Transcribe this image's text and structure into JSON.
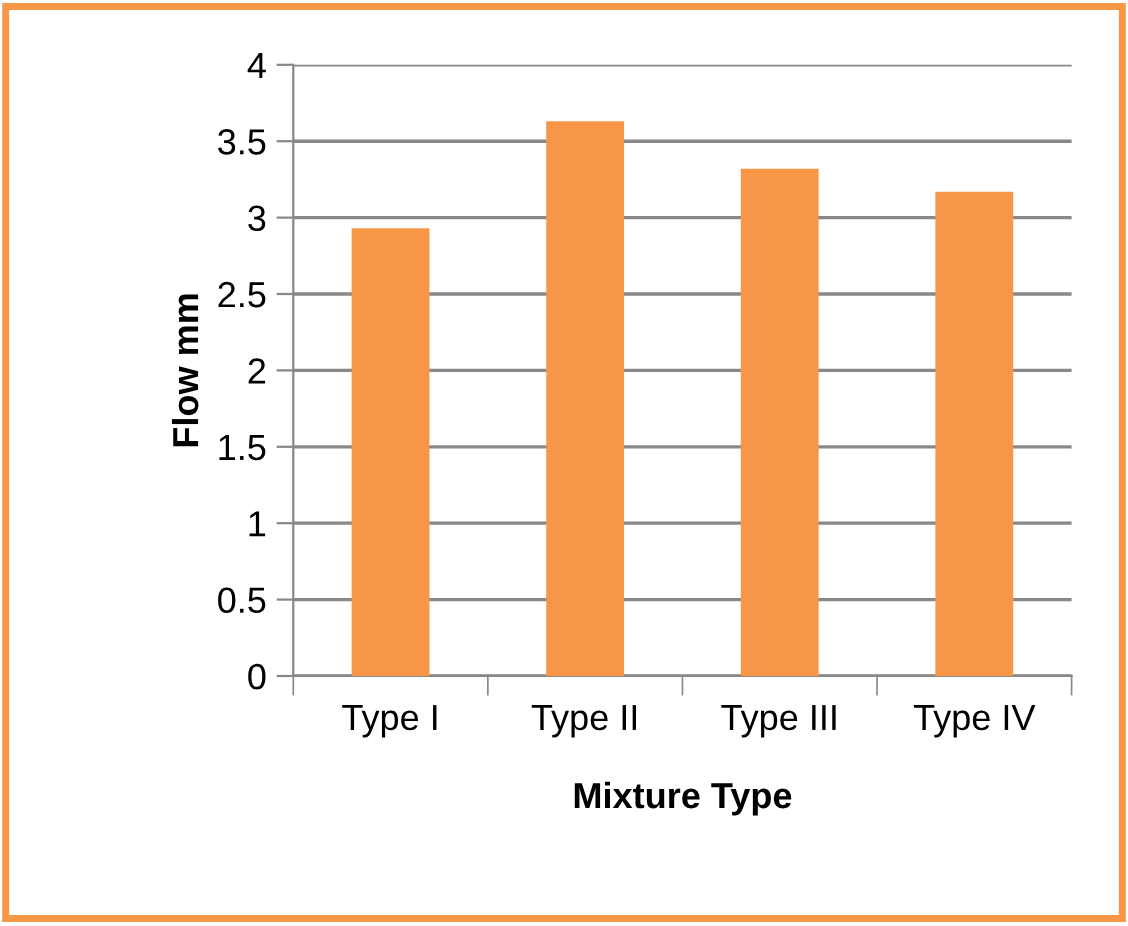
{
  "chart_data": {
    "type": "bar",
    "xlabel": "Mixture Type",
    "ylabel": "Flow mm",
    "categories": [
      "Type I",
      "Type II",
      "Type III",
      "Type IV"
    ],
    "values": [
      2.93,
      3.63,
      3.32,
      3.17
    ],
    "color": "#f79646",
    "ylim": [
      0,
      4
    ],
    "yticks": [
      0,
      0.5,
      1,
      1.5,
      2,
      2.5,
      3,
      3.5,
      4
    ],
    "grid": "y"
  }
}
